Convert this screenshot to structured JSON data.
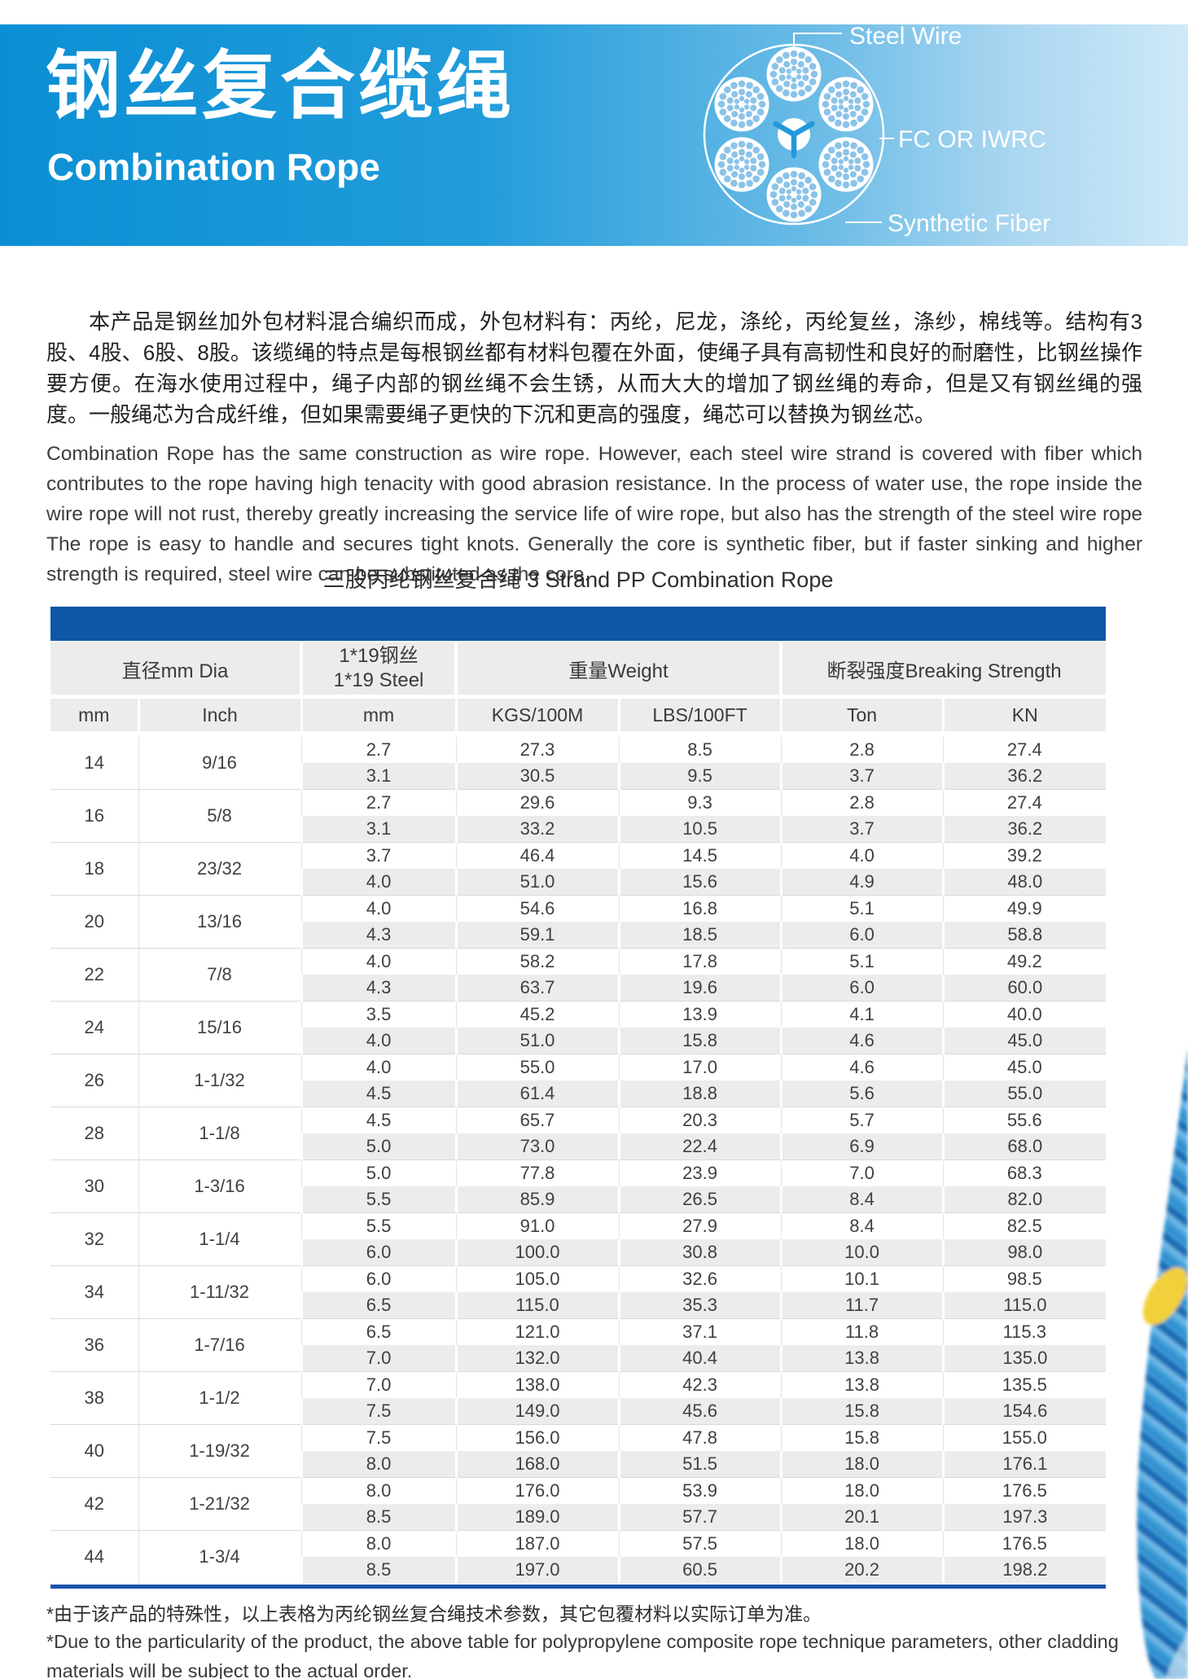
{
  "banner": {
    "title_cn": "钢丝复合缆绳",
    "title_en": "Combination Rope",
    "diagram_labels": {
      "steel_wire": "Steel Wire",
      "fc_or_iwrc": "FC OR IWRC",
      "synthetic_fiber": "Synthetic Fiber"
    },
    "colors": {
      "banner_left": "#0b8fd4",
      "banner_right": "#cfe9f8",
      "strand_dot": "#8cc3e8"
    }
  },
  "intro": {
    "paragraph_cn": "本产品是钢丝加外包材料混合编织而成，外包材料有：丙纶，尼龙，涤纶，丙纶复丝，涤纱，棉线等。结构有3股、4股、6股、8股。该缆绳的特点是每根钢丝都有材料包覆在外面，使绳子具有高韧性和良好的耐磨性，比钢丝操作要方便。在海水使用过程中，绳子内部的钢丝绳不会生锈，从而大大的增加了钢丝绳的寿命，但是又有钢丝绳的强度。一般绳芯为合成纤维，但如果需要绳子更快的下沉和更高的强度，绳芯可以替换为钢丝芯。",
    "paragraph_en": "Combination Rope has the same construction as wire rope. However, each steel wire strand is covered with fiber which contributes to the rope having high tenacity with good abrasion resistance. In the process of water use, the rope inside the wire rope will not rust, thereby greatly increasing the service life of wire rope, but also has the strength of the steel wire rope The rope is easy to handle and secures tight knots. Generally the core is synthetic fiber, but if faster sinking and higher strength is required, steel wire can be substituted as the core."
  },
  "table": {
    "title": "三股丙纶钢丝复合绳  3 Strand PP Combination Rope",
    "colors": {
      "header_bar": "#0e57a8",
      "bottom_border": "#1a52ab",
      "stripe": "#ececec"
    },
    "group_headers": {
      "dia": "直径mm Dia",
      "steel_line1": "1*19钢丝",
      "steel_line2": "1*19 Steel",
      "weight": "重量Weight",
      "breaking": "断裂强度Breaking Strength"
    },
    "column_headers": [
      "mm",
      "Inch",
      "mm",
      "KGS/100M",
      "LBS/100FT",
      "Ton",
      "KN"
    ],
    "rows": [
      {
        "mm": "14",
        "inch": "9/16",
        "subrows": [
          [
            "2.7",
            "27.3",
            "8.5",
            "2.8",
            "27.4"
          ],
          [
            "3.1",
            "30.5",
            "9.5",
            "3.7",
            "36.2"
          ]
        ]
      },
      {
        "mm": "16",
        "inch": "5/8",
        "subrows": [
          [
            "2.7",
            "29.6",
            "9.3",
            "2.8",
            "27.4"
          ],
          [
            "3.1",
            "33.2",
            "10.5",
            "3.7",
            "36.2"
          ]
        ]
      },
      {
        "mm": "18",
        "inch": "23/32",
        "subrows": [
          [
            "3.7",
            "46.4",
            "14.5",
            "4.0",
            "39.2"
          ],
          [
            "4.0",
            "51.0",
            "15.6",
            "4.9",
            "48.0"
          ]
        ]
      },
      {
        "mm": "20",
        "inch": "13/16",
        "subrows": [
          [
            "4.0",
            "54.6",
            "16.8",
            "5.1",
            "49.9"
          ],
          [
            "4.3",
            "59.1",
            "18.5",
            "6.0",
            "58.8"
          ]
        ]
      },
      {
        "mm": "22",
        "inch": "7/8",
        "subrows": [
          [
            "4.0",
            "58.2",
            "17.8",
            "5.1",
            "49.2"
          ],
          [
            "4.3",
            "63.7",
            "19.6",
            "6.0",
            "60.0"
          ]
        ]
      },
      {
        "mm": "24",
        "inch": "15/16",
        "subrows": [
          [
            "3.5",
            "45.2",
            "13.9",
            "4.1",
            "40.0"
          ],
          [
            "4.0",
            "51.0",
            "15.8",
            "4.6",
            "45.0"
          ]
        ]
      },
      {
        "mm": "26",
        "inch": "1-1/32",
        "subrows": [
          [
            "4.0",
            "55.0",
            "17.0",
            "4.6",
            "45.0"
          ],
          [
            "4.5",
            "61.4",
            "18.8",
            "5.6",
            "55.0"
          ]
        ]
      },
      {
        "mm": "28",
        "inch": "1-1/8",
        "subrows": [
          [
            "4.5",
            "65.7",
            "20.3",
            "5.7",
            "55.6"
          ],
          [
            "5.0",
            "73.0",
            "22.4",
            "6.9",
            "68.0"
          ]
        ]
      },
      {
        "mm": "30",
        "inch": "1-3/16",
        "subrows": [
          [
            "5.0",
            "77.8",
            "23.9",
            "7.0",
            "68.3"
          ],
          [
            "5.5",
            "85.9",
            "26.5",
            "8.4",
            "82.0"
          ]
        ]
      },
      {
        "mm": "32",
        "inch": "1-1/4",
        "subrows": [
          [
            "5.5",
            "91.0",
            "27.9",
            "8.4",
            "82.5"
          ],
          [
            "6.0",
            "100.0",
            "30.8",
            "10.0",
            "98.0"
          ]
        ]
      },
      {
        "mm": "34",
        "inch": "1-11/32",
        "subrows": [
          [
            "6.0",
            "105.0",
            "32.6",
            "10.1",
            "98.5"
          ],
          [
            "6.5",
            "115.0",
            "35.3",
            "11.7",
            "115.0"
          ]
        ]
      },
      {
        "mm": "36",
        "inch": "1-7/16",
        "subrows": [
          [
            "6.5",
            "121.0",
            "37.1",
            "11.8",
            "115.3"
          ],
          [
            "7.0",
            "132.0",
            "40.4",
            "13.8",
            "135.0"
          ]
        ]
      },
      {
        "mm": "38",
        "inch": "1-1/2",
        "subrows": [
          [
            "7.0",
            "138.0",
            "42.3",
            "13.8",
            "135.5"
          ],
          [
            "7.5",
            "149.0",
            "45.6",
            "15.8",
            "154.6"
          ]
        ]
      },
      {
        "mm": "40",
        "inch": "1-19/32",
        "subrows": [
          [
            "7.5",
            "156.0",
            "47.8",
            "15.8",
            "155.0"
          ],
          [
            "8.0",
            "168.0",
            "51.5",
            "18.0",
            "176.1"
          ]
        ]
      },
      {
        "mm": "42",
        "inch": "1-21/32",
        "subrows": [
          [
            "8.0",
            "176.0",
            "53.9",
            "18.0",
            "176.5"
          ],
          [
            "8.5",
            "189.0",
            "57.7",
            "20.1",
            "197.3"
          ]
        ]
      },
      {
        "mm": "44",
        "inch": "1-3/4",
        "subrows": [
          [
            "8.0",
            "187.0",
            "57.5",
            "18.0",
            "176.5"
          ],
          [
            "8.5",
            "197.0",
            "60.5",
            "20.2",
            "198.2"
          ]
        ]
      }
    ]
  },
  "footnotes": {
    "cn": "*由于该产品的特殊性，以上表格为丙纶钢丝复合绳技术参数，其它包覆材料以实际订单为准。",
    "en": "*Due to the particularity of the product, the above table for polypropylene composite rope technique parameters, other cladding materials will be subject to the actual order."
  }
}
